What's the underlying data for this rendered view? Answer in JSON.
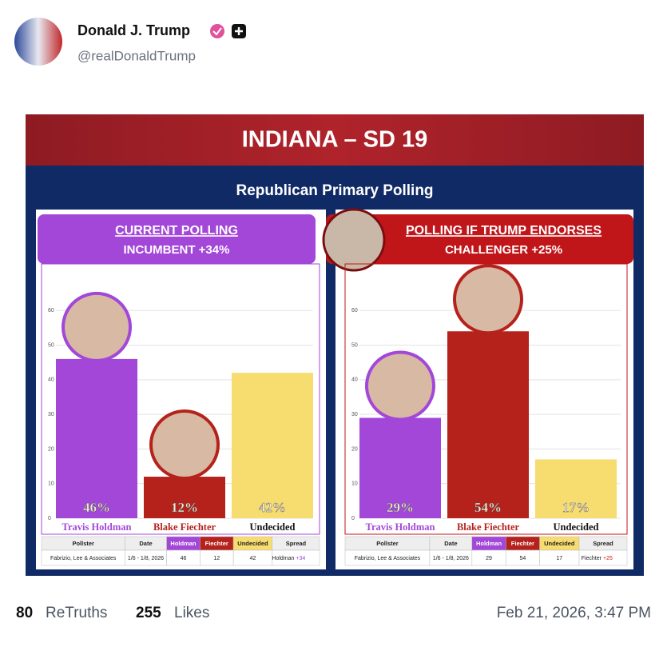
{
  "user": {
    "name": "Donald J. Trump",
    "handle": "@realDonaldTrump"
  },
  "graphic": {
    "title": "INDIANA – SD 19",
    "subtitle": "Republican Primary Polling",
    "panels": [
      {
        "heading": "CURRENT POLLING",
        "subheading": "INCUMBENT +34%",
        "heading_color": "#a347d9",
        "categories": [
          "Travis Holdman",
          "Blake Fiechter",
          "Undecided"
        ],
        "values": [
          46,
          12,
          42
        ],
        "value_labels": [
          "46%",
          "12%",
          "42%"
        ],
        "colors": [
          "#a347d9",
          "#b5221c",
          "#f7dc6f"
        ],
        "label_colors": [
          "#a347d9",
          "#b5221c",
          "#111111"
        ],
        "ylim": [
          0,
          70
        ],
        "yticks": [
          0,
          10,
          20,
          30,
          40,
          50,
          60
        ],
        "grid": true,
        "table": {
          "header": [
            "Pollster",
            "Date",
            "Holdman",
            "Fiechter",
            "Undecided",
            "Spread"
          ],
          "row": [
            "Fabrizio, Lee & Associates",
            "1/6 - 1/8, 2026",
            46,
            12,
            42
          ],
          "spread": [
            "Holdman",
            "+34"
          ],
          "spread_color": "#a347d9"
        }
      },
      {
        "heading": "POLLING IF TRUMP ENDORSES",
        "subheading": "CHALLENGER +25%",
        "heading_color": "#c0161a",
        "categories": [
          "Travis Holdman",
          "Blake Fiechter",
          "Undecided"
        ],
        "values": [
          29,
          54,
          17
        ],
        "value_labels": [
          "29%",
          "54%",
          "17%"
        ],
        "colors": [
          "#a347d9",
          "#b5221c",
          "#f7dc6f"
        ],
        "label_colors": [
          "#a347d9",
          "#b5221c",
          "#111111"
        ],
        "ylim": [
          0,
          70
        ],
        "yticks": [
          0,
          10,
          20,
          30,
          40,
          50,
          60
        ],
        "grid": true,
        "table": {
          "header": [
            "Pollster",
            "Date",
            "Holdman",
            "Fiechter",
            "Undecided",
            "Spread"
          ],
          "row": [
            "Fabrizio, Lee & Associates",
            "1/6 - 1/8, 2026",
            29,
            54,
            17
          ],
          "spread": [
            "Fiechter",
            "+25"
          ],
          "spread_color": "#d0201a"
        }
      }
    ]
  },
  "stats": {
    "retruths": 80,
    "retruths_label": "ReTruths",
    "likes": 255,
    "likes_label": "Likes",
    "timestamp": "Feb 21, 2026, 3:47 PM"
  }
}
